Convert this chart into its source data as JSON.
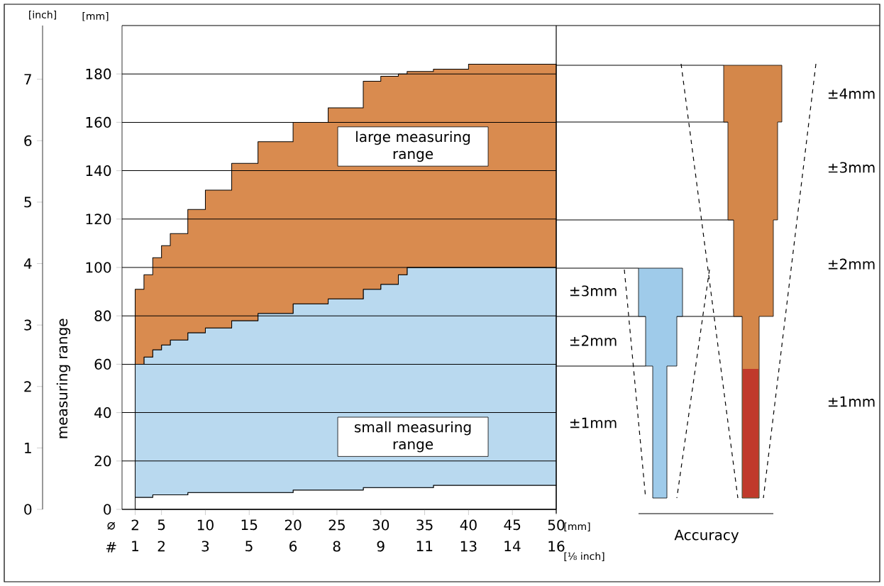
{
  "chart_data": [
    {
      "type": "area",
      "ylabel": "[mm]",
      "y2label": "[inch]",
      "xlabel": "[mm]",
      "x2label": "[⅛ inch]",
      "x": [
        2,
        3,
        4,
        5,
        6,
        8,
        10,
        13,
        16,
        20,
        24,
        28,
        30,
        32,
        33,
        36,
        40,
        45,
        50
      ],
      "series": [
        {
          "type": "area",
          "color": "#ffffff",
          "values": [
            5,
            5,
            6,
            6,
            6,
            7,
            7,
            7,
            7,
            8,
            8,
            9,
            9,
            9,
            9,
            10,
            10,
            10,
            10
          ]
        },
        {
          "name": "small measuring range",
          "type": "area",
          "color": "#b9d9ef",
          "values": [
            55,
            58,
            60,
            62,
            64,
            66,
            68,
            71,
            74,
            77,
            79,
            82,
            84,
            88,
            91,
            90,
            90,
            90,
            90
          ]
        },
        {
          "name": "large measuring range",
          "type": "area",
          "color": "#d98b4f",
          "values": [
            31,
            34,
            38,
            41,
            44,
            51,
            57,
            65,
            71,
            75,
            79,
            86,
            86,
            83,
            81,
            82,
            84,
            84,
            84
          ]
        }
      ],
      "stacked": true,
      "xlim": [
        0.5,
        50
      ],
      "xticks": [
        2,
        5,
        10,
        15,
        20,
        25,
        30,
        35,
        40,
        45,
        50
      ],
      "x2lim": [
        0.16,
        15.75
      ],
      "x2ticks": [
        {
          "value": 0.63,
          "label": "1"
        },
        {
          "value": 1.575,
          "label": "2"
        },
        {
          "value": 3.15,
          "label": "3"
        },
        {
          "value": 4.72,
          "label": "5"
        },
        {
          "value": 6.3,
          "label": "6"
        },
        {
          "value": 7.87,
          "label": "8"
        },
        {
          "value": 9.45,
          "label": "9"
        },
        {
          "value": 11.02,
          "label": "11"
        },
        {
          "value": 12.6,
          "label": "13"
        },
        {
          "value": 14.17,
          "label": "14"
        },
        {
          "value": 15.75,
          "label": "16"
        }
      ],
      "ylim": [
        0,
        200
      ],
      "yticks": [
        0,
        20,
        40,
        60,
        80,
        100,
        120,
        140,
        160,
        180
      ],
      "y2lim": [
        0,
        7.874
      ],
      "y2ticks": [
        0,
        1,
        2,
        3,
        4,
        5,
        6,
        7
      ],
      "grid": "y",
      "annotations": [
        "⌀",
        "#",
        "measuring range"
      ]
    },
    {
      "type": "other",
      "annotations": [
        "±3mm",
        "±2mm",
        "±1mm",
        "±4mm",
        "±3mm",
        "±2mm",
        "±1mm",
        "Accuracy"
      ]
    }
  ]
}
